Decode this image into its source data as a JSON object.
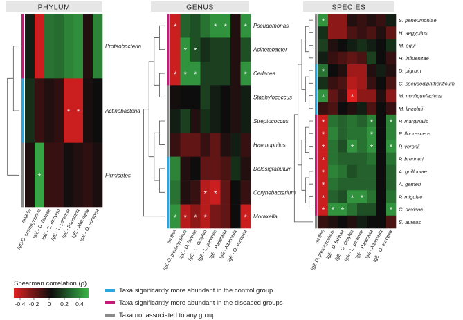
{
  "chart_data": {
    "type": "heatmap",
    "colorbar": {
      "title": "Spearman correlation (ρ)",
      "ticks": [
        "-0.4",
        "-0.2",
        "0",
        "0.2",
        "0.4"
      ],
      "range": [
        -0.5,
        0.5
      ],
      "low_color": "#e02020",
      "mid_color": "#0d0d0d",
      "high_color": "#3ab54a"
    },
    "legend": [
      {
        "label": "Taxa significantly more abundant in the control group",
        "color": "#29a8e0"
      },
      {
        "label": "Taxa significantly more abundant in the diseased groups",
        "color": "#c8197a"
      },
      {
        "label": "Taxa not associated to any group",
        "color": "#8a8a8a"
      }
    ],
    "columns": [
      "mNF%",
      "IgE-D. pteronyssinus",
      "IgE - D. farinae",
      "IgE - C. dictylon",
      "IgE - L. perenne",
      "IgE - Parietaria",
      "IgE - Alternaria",
      "IgE - O. europea"
    ],
    "panels": [
      {
        "title": "PHYLUM",
        "rows": [
          "Proteobacteria",
          "Actinobacteria",
          "Firmicutes"
        ],
        "groups": [
          "diseased",
          "control",
          "none"
        ],
        "values": [
          [
            0.05,
            -0.45,
            0.3,
            0.28,
            0.35,
            0.38,
            -0.05,
            0.35
          ],
          [
            0.1,
            -0.1,
            -0.05,
            -0.08,
            -0.45,
            -0.45,
            -0.03,
            0.0
          ],
          [
            -0.05,
            0.45,
            -0.1,
            -0.1,
            -0.02,
            -0.05,
            -0.08,
            -0.03
          ]
        ],
        "stars": [
          [
            0,
            0,
            0,
            0,
            0,
            0,
            0,
            0
          ],
          [
            0,
            0,
            0,
            0,
            1,
            1,
            0,
            0
          ],
          [
            0,
            1,
            0,
            0,
            0,
            0,
            0,
            0
          ]
        ]
      },
      {
        "title": "GENUS",
        "rows": [
          "Pseudomonas",
          "Acinetobacter",
          "Cedecea",
          "Staphylococcus",
          "Streptococcus",
          "Haemophilus",
          "Dolosigranulum",
          "Corynebacterium",
          "Moraxella"
        ],
        "groups": [
          "diseased",
          "diseased",
          "diseased",
          "none",
          "none",
          "none",
          "control",
          "control",
          "control"
        ],
        "values": [
          [
            -0.45,
            0.25,
            0.2,
            0.3,
            0.4,
            0.4,
            -0.05,
            0.4
          ],
          [
            -0.45,
            0.4,
            0.2,
            0.1,
            0.15,
            0.15,
            -0.05,
            0.2
          ],
          [
            -0.45,
            0.4,
            0.4,
            0.15,
            0.15,
            0.15,
            -0.05,
            0.4
          ],
          [
            -0.02,
            0.0,
            0.0,
            0.15,
            0.05,
            0.0,
            -0.05,
            0.05
          ],
          [
            0.05,
            0.15,
            -0.05,
            0.1,
            0.05,
            0.0,
            -0.05,
            0.05
          ],
          [
            -0.1,
            -0.2,
            -0.2,
            -0.1,
            -0.2,
            -0.05,
            0.05,
            -0.1
          ],
          [
            0.35,
            -0.05,
            0.0,
            -0.2,
            -0.2,
            -0.15,
            0.1,
            -0.05
          ],
          [
            0.3,
            -0.05,
            -0.1,
            -0.4,
            -0.45,
            -0.2,
            0.0,
            -0.1
          ],
          [
            0.4,
            -0.4,
            -0.3,
            -0.4,
            -0.25,
            -0.2,
            0.0,
            -0.45
          ]
        ],
        "stars": [
          [
            1,
            0,
            0,
            0,
            1,
            1,
            0,
            1
          ],
          [
            0,
            1,
            1,
            0,
            0,
            0,
            0,
            0
          ],
          [
            1,
            1,
            1,
            0,
            0,
            0,
            0,
            1
          ],
          [
            0,
            0,
            0,
            0,
            0,
            0,
            0,
            0
          ],
          [
            0,
            0,
            0,
            0,
            0,
            0,
            0,
            0
          ],
          [
            0,
            0,
            0,
            0,
            0,
            0,
            0,
            0
          ],
          [
            0,
            0,
            0,
            0,
            0,
            0,
            0,
            0
          ],
          [
            0,
            0,
            0,
            1,
            1,
            0,
            0,
            0
          ],
          [
            1,
            1,
            1,
            1,
            0,
            0,
            0,
            1
          ]
        ]
      },
      {
        "title": "SPECIES",
        "rows": [
          "S. peneumoniae",
          "H. aegyptius",
          "M. equi",
          "H. influenzae",
          "D. pigrum",
          "C. pseudodiphtheriticum",
          "M. nonliquefaciens",
          "M. lincolnii",
          "P. marginalis",
          "P. fluorescens",
          "P. veronii",
          "P. brenneri",
          "A. guillouiae",
          "A. gemeri",
          "P. migulae",
          "C. davisae",
          "S. aureus"
        ],
        "groups": [
          "none",
          "none",
          "none",
          "none",
          "control",
          "control",
          "control",
          "control",
          "diseased",
          "diseased",
          "diseased",
          "diseased",
          "diseased",
          "diseased",
          "diseased",
          "diseased",
          "none"
        ],
        "values": [
          [
            0.4,
            -0.3,
            -0.3,
            -0.05,
            -0.1,
            -0.05,
            -0.1,
            0.05
          ],
          [
            0.1,
            -0.3,
            -0.3,
            -0.15,
            -0.1,
            -0.15,
            -0.05,
            -0.2
          ],
          [
            0.15,
            -0.05,
            0.0,
            0.05,
            0.1,
            0.05,
            0.0,
            0.1
          ],
          [
            0.05,
            -0.1,
            -0.15,
            -0.2,
            -0.15,
            0.15,
            0.0,
            -0.1
          ],
          [
            0.3,
            0.0,
            -0.05,
            -0.35,
            -0.35,
            -0.05,
            0.05,
            -0.05
          ],
          [
            0.1,
            -0.1,
            -0.15,
            -0.4,
            -0.35,
            -0.1,
            0.0,
            -0.15
          ],
          [
            0.4,
            -0.2,
            -0.1,
            -0.5,
            -0.3,
            -0.3,
            -0.05,
            -0.3
          ],
          [
            -0.1,
            -0.15,
            0.0,
            -0.05,
            0.05,
            -0.15,
            0.0,
            -0.1
          ],
          [
            -0.45,
            0.3,
            0.25,
            0.3,
            0.25,
            0.35,
            0.0,
            0.35
          ],
          [
            -0.45,
            0.35,
            0.25,
            0.3,
            0.3,
            0.4,
            0.0,
            0.35
          ],
          [
            -0.45,
            0.3,
            0.2,
            0.4,
            0.3,
            0.4,
            0.0,
            0.4
          ],
          [
            -0.45,
            0.3,
            0.25,
            0.25,
            0.25,
            0.3,
            0.0,
            0.3
          ],
          [
            -0.45,
            0.35,
            0.3,
            0.2,
            0.25,
            0.25,
            0.0,
            0.25
          ],
          [
            -0.45,
            0.3,
            0.25,
            0.25,
            0.25,
            0.25,
            0.0,
            0.25
          ],
          [
            -0.45,
            0.25,
            0.2,
            0.4,
            0.4,
            0.3,
            0.0,
            0.3
          ],
          [
            -0.45,
            0.4,
            0.4,
            0.3,
            0.2,
            0.2,
            0.0,
            0.4
          ],
          [
            -0.1,
            -0.05,
            0.0,
            -0.05,
            0.05,
            0.0,
            0.0,
            -0.15
          ]
        ],
        "stars": [
          [
            1,
            0,
            0,
            0,
            0,
            0,
            0,
            0
          ],
          [
            0,
            0,
            0,
            0,
            0,
            0,
            0,
            0
          ],
          [
            0,
            0,
            0,
            0,
            0,
            0,
            0,
            0
          ],
          [
            0,
            0,
            0,
            0,
            0,
            0,
            0,
            0
          ],
          [
            1,
            0,
            0,
            0,
            0,
            0,
            0,
            0
          ],
          [
            0,
            0,
            0,
            0,
            0,
            0,
            0,
            0
          ],
          [
            1,
            0,
            0,
            1,
            0,
            0,
            0,
            0
          ],
          [
            0,
            0,
            0,
            0,
            0,
            0,
            0,
            0
          ],
          [
            1,
            0,
            0,
            0,
            0,
            1,
            0,
            1
          ],
          [
            1,
            0,
            0,
            0,
            0,
            1,
            0,
            0
          ],
          [
            1,
            0,
            0,
            1,
            0,
            1,
            0,
            1
          ],
          [
            1,
            0,
            0,
            0,
            0,
            0,
            0,
            0
          ],
          [
            1,
            0,
            0,
            0,
            0,
            0,
            0,
            0
          ],
          [
            1,
            0,
            0,
            0,
            0,
            0,
            0,
            0
          ],
          [
            1,
            0,
            0,
            1,
            1,
            0,
            0,
            0
          ],
          [
            1,
            1,
            1,
            0,
            0,
            0,
            0,
            1
          ],
          [
            0,
            0,
            0,
            0,
            0,
            0,
            0,
            0
          ]
        ]
      }
    ]
  }
}
